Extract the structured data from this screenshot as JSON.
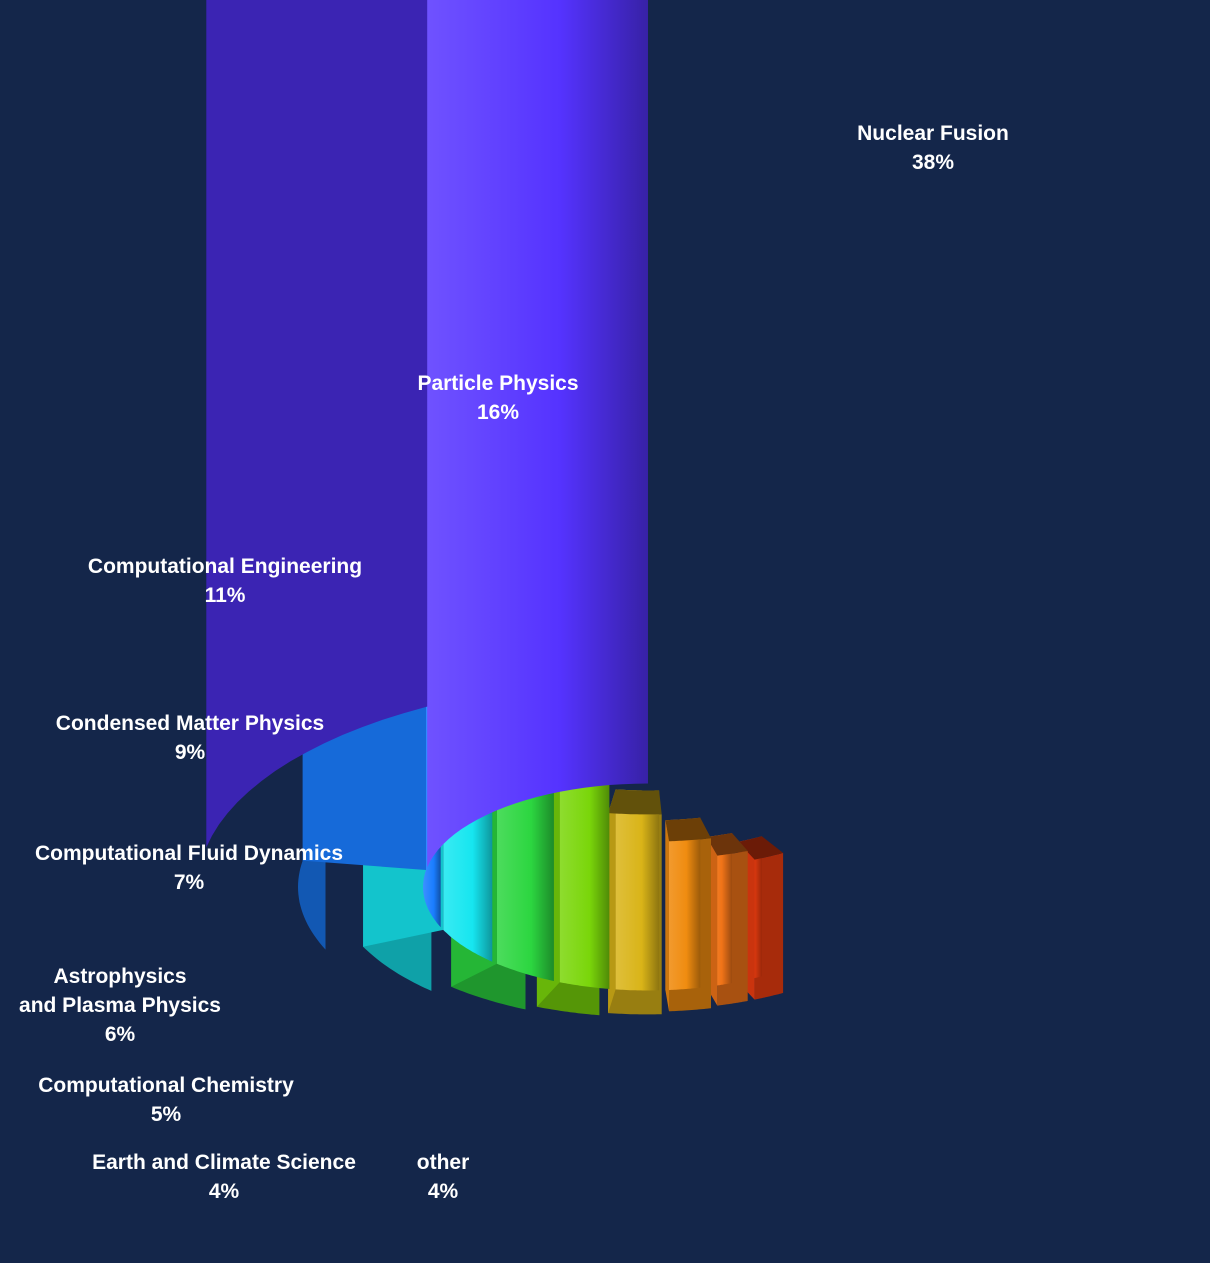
{
  "chart_data": {
    "type": "pie",
    "style": "3D exploded half-ring with slice heights varying by value",
    "categories": [
      "Nuclear Fusion",
      "Particle Physics",
      "Computational Engineering",
      "Condensed Matter Physics",
      "Computational Fluid Dynamics",
      "Astrophysics and Plasma Physics",
      "Computational Chemistry",
      "Earth and Climate Science",
      "other"
    ],
    "values": [
      38,
      16,
      11,
      9,
      7,
      6,
      5,
      4,
      4
    ],
    "unit": "%",
    "labels": [
      {
        "lines": [
          "Nuclear Fusion"
        ],
        "value": "38%"
      },
      {
        "lines": [
          "Particle Physics"
        ],
        "value": "16%"
      },
      {
        "lines": [
          "Computational Engineering"
        ],
        "value": "11%"
      },
      {
        "lines": [
          "Condensed Matter Physics"
        ],
        "value": "9%"
      },
      {
        "lines": [
          "Computational Fluid Dynamics"
        ],
        "value": "7%"
      },
      {
        "lines": [
          "Astrophysics",
          "and Plasma Physics"
        ],
        "value": "6%"
      },
      {
        "lines": [
          "Computational Chemistry"
        ],
        "value": "5%"
      },
      {
        "lines": [
          "Earth and Climate Science"
        ],
        "value": "4%"
      },
      {
        "lines": [
          "other"
        ],
        "value": "4%"
      }
    ],
    "colors": [
      "#5533ff",
      "#1a7dff",
      "#16e6f0",
      "#2cd640",
      "#7ad60a",
      "#d9b418",
      "#f08c10",
      "#f07418",
      "#ee3d10"
    ],
    "background": "#14264a",
    "legend": "none",
    "grid": false
  }
}
